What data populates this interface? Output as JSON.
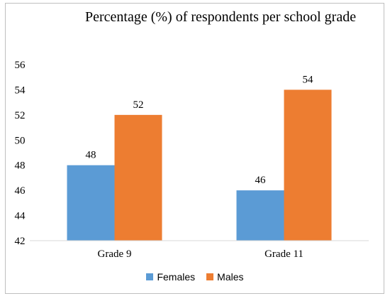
{
  "chart_data": {
    "type": "bar",
    "title": "Percentage (%) of respondents per school grade",
    "xlabel": "",
    "ylabel": "",
    "categories": [
      "Grade 9",
      "Grade 11"
    ],
    "series": [
      {
        "name": "Females",
        "values": [
          48,
          46
        ],
        "color": "#5b9bd5"
      },
      {
        "name": "Males",
        "values": [
          52,
          54
        ],
        "color": "#ed7d31"
      }
    ],
    "ylim": [
      42,
      56
    ],
    "yticks": [
      42,
      44,
      46,
      48,
      50,
      52,
      54,
      56
    ],
    "grid": false,
    "legend_position": "bottom"
  }
}
